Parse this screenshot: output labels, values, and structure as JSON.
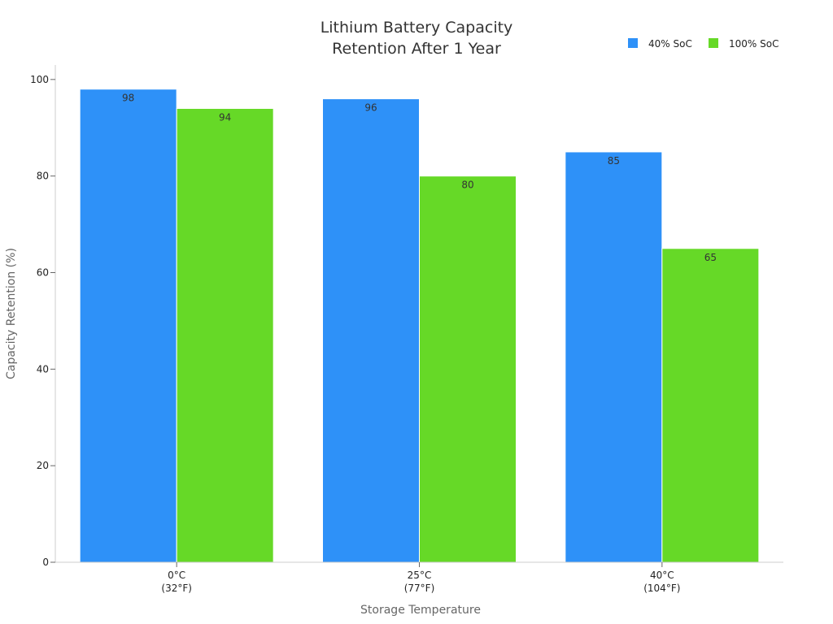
{
  "chart_data": {
    "type": "bar",
    "title_lines": [
      "Lithium Battery Capacity",
      "Retention After 1 Year"
    ],
    "xlabel": "Storage Temperature",
    "ylabel": "Capacity Retention (%)",
    "categories": [
      [
        "0°C",
        "(32°F)"
      ],
      [
        "25°C",
        "(77°F)"
      ],
      [
        "40°C",
        "(104°F)"
      ]
    ],
    "series": [
      {
        "name": "40% SoC",
        "color": "#2e91f8",
        "values": [
          98,
          96,
          85
        ]
      },
      {
        "name": "100% SoC",
        "color": "#66d927",
        "values": [
          94,
          80,
          65
        ]
      }
    ],
    "ylim": [
      0,
      103
    ],
    "yticks": [
      0,
      20,
      40,
      60,
      80,
      100
    ],
    "grid": false,
    "legend_position": "top-right"
  }
}
